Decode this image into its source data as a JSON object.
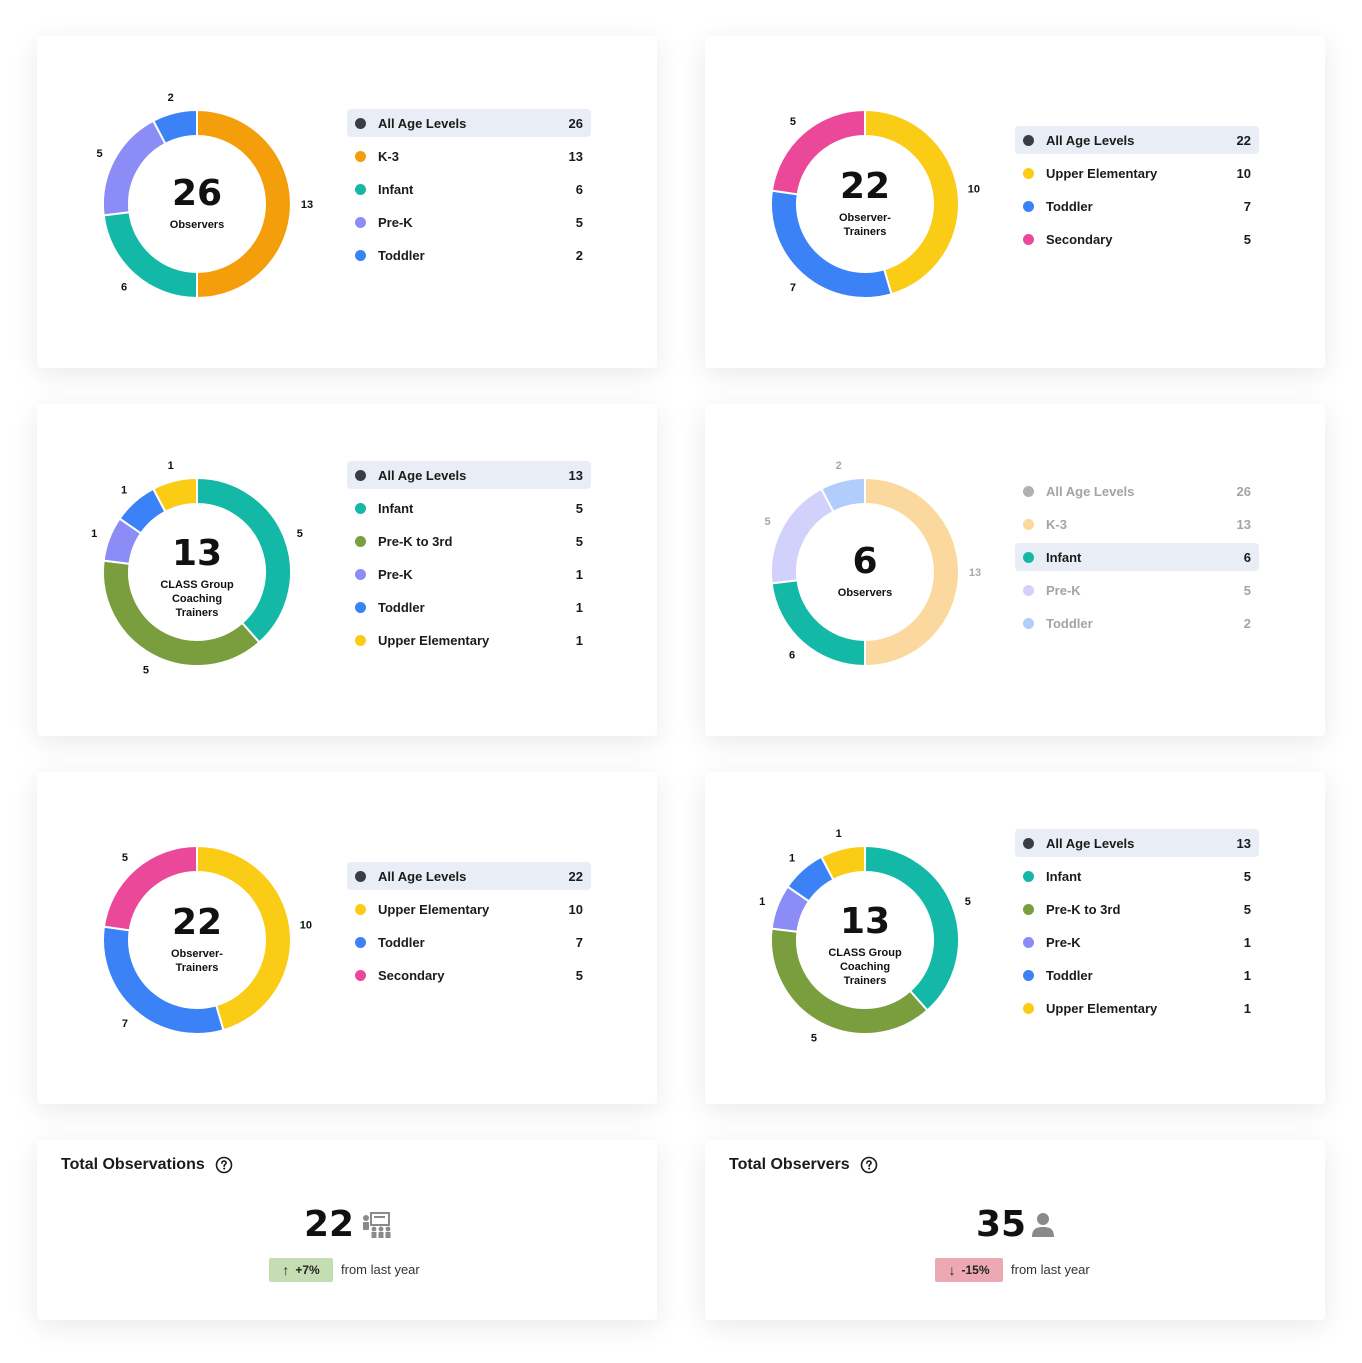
{
  "colors": {
    "all": "#3a3d44",
    "k3": "#f59e0b",
    "infant": "#14b8a6",
    "prek": "#8b8cf6",
    "toddler": "#3b82f6",
    "upper": "#facc15",
    "secondary": "#ec4899",
    "prek3rd": "#7a9e3e",
    "up_badge": "#c4ddb2",
    "down_badge": "#eda9b3"
  },
  "chart_data": [
    {
      "type": "pie",
      "center_value": "26",
      "center_label": [
        "Observers"
      ],
      "categories": [
        "K-3",
        "Infant",
        "Pre-K",
        "Toddler"
      ],
      "values": [
        13,
        6,
        5,
        2
      ],
      "colors": [
        "#f59e0b",
        "#14b8a6",
        "#8b8cf6",
        "#3b82f6"
      ],
      "highlight": null,
      "legend": [
        {
          "label": "All Age Levels",
          "value": "26",
          "color": "#3a3d44"
        },
        {
          "label": "K-3",
          "value": "13",
          "color": "#f59e0b"
        },
        {
          "label": "Infant",
          "value": "6",
          "color": "#14b8a6"
        },
        {
          "label": "Pre-K",
          "value": "5",
          "color": "#8b8cf6"
        },
        {
          "label": "Toddler",
          "value": "2",
          "color": "#3b82f6"
        }
      ],
      "selected_legend": 0
    },
    {
      "type": "pie",
      "center_value": "22",
      "center_label": [
        "Observer-",
        "Trainers"
      ],
      "categories": [
        "Upper Elementary",
        "Toddler",
        "Secondary"
      ],
      "values": [
        10,
        7,
        5
      ],
      "colors": [
        "#facc15",
        "#3b82f6",
        "#ec4899"
      ],
      "highlight": null,
      "legend": [
        {
          "label": "All Age Levels",
          "value": "22",
          "color": "#3a3d44"
        },
        {
          "label": "Upper Elementary",
          "value": "10",
          "color": "#facc15"
        },
        {
          "label": "Toddler",
          "value": "7",
          "color": "#3b82f6"
        },
        {
          "label": "Secondary",
          "value": "5",
          "color": "#ec4899"
        }
      ],
      "selected_legend": 0
    },
    {
      "type": "pie",
      "center_value": "13",
      "center_label": [
        "CLASS Group",
        "Coaching",
        "Trainers"
      ],
      "categories": [
        "Infant",
        "Pre-K to 3rd",
        "Pre-K",
        "Toddler",
        "Upper Elementary"
      ],
      "values": [
        5,
        5,
        1,
        1,
        1
      ],
      "colors": [
        "#14b8a6",
        "#7a9e3e",
        "#8b8cf6",
        "#3b82f6",
        "#facc15"
      ],
      "highlight": null,
      "legend": [
        {
          "label": "All Age Levels",
          "value": "13",
          "color": "#3a3d44"
        },
        {
          "label": "Infant",
          "value": "5",
          "color": "#14b8a6"
        },
        {
          "label": "Pre-K to 3rd",
          "value": "5",
          "color": "#7a9e3e"
        },
        {
          "label": "Pre-K",
          "value": "1",
          "color": "#8b8cf6"
        },
        {
          "label": "Toddler",
          "value": "1",
          "color": "#3b82f6"
        },
        {
          "label": "Upper Elementary",
          "value": "1",
          "color": "#facc15"
        }
      ],
      "selected_legend": 0
    },
    {
      "type": "pie",
      "center_value": "6",
      "center_label": [
        "Observers"
      ],
      "categories": [
        "K-3",
        "Infant",
        "Pre-K",
        "Toddler"
      ],
      "values": [
        13,
        6,
        5,
        2
      ],
      "colors": [
        "#f59e0b",
        "#14b8a6",
        "#8b8cf6",
        "#3b82f6"
      ],
      "highlight": 1,
      "legend": [
        {
          "label": "All Age Levels",
          "value": "26",
          "color": "#3a3d44"
        },
        {
          "label": "K-3",
          "value": "13",
          "color": "#f59e0b"
        },
        {
          "label": "Infant",
          "value": "6",
          "color": "#14b8a6"
        },
        {
          "label": "Pre-K",
          "value": "5",
          "color": "#8b8cf6"
        },
        {
          "label": "Toddler",
          "value": "2",
          "color": "#3b82f6"
        }
      ],
      "selected_legend": 2
    },
    {
      "type": "pie",
      "center_value": "22",
      "center_label": [
        "Observer-",
        "Trainers"
      ],
      "categories": [
        "Upper Elementary",
        "Toddler",
        "Secondary"
      ],
      "values": [
        10,
        7,
        5
      ],
      "colors": [
        "#facc15",
        "#3b82f6",
        "#ec4899"
      ],
      "highlight": null,
      "legend": [
        {
          "label": "All Age Levels",
          "value": "22",
          "color": "#3a3d44"
        },
        {
          "label": "Upper Elementary",
          "value": "10",
          "color": "#facc15"
        },
        {
          "label": "Toddler",
          "value": "7",
          "color": "#3b82f6"
        },
        {
          "label": "Secondary",
          "value": "5",
          "color": "#ec4899"
        }
      ],
      "selected_legend": 0
    },
    {
      "type": "pie",
      "center_value": "13",
      "center_label": [
        "CLASS Group",
        "Coaching",
        "Trainers"
      ],
      "categories": [
        "Infant",
        "Pre-K to 3rd",
        "Pre-K",
        "Toddler",
        "Upper Elementary"
      ],
      "values": [
        5,
        5,
        1,
        1,
        1
      ],
      "colors": [
        "#14b8a6",
        "#7a9e3e",
        "#8b8cf6",
        "#3b82f6",
        "#facc15"
      ],
      "highlight": null,
      "legend": [
        {
          "label": "All Age Levels",
          "value": "13",
          "color": "#3a3d44"
        },
        {
          "label": "Infant",
          "value": "5",
          "color": "#14b8a6"
        },
        {
          "label": "Pre-K to 3rd",
          "value": "5",
          "color": "#7a9e3e"
        },
        {
          "label": "Pre-K",
          "value": "1",
          "color": "#8b8cf6"
        },
        {
          "label": "Toddler",
          "value": "1",
          "color": "#3b82f6"
        },
        {
          "label": "Upper Elementary",
          "value": "1",
          "color": "#facc15"
        }
      ],
      "selected_legend": 0
    }
  ],
  "kpis": {
    "observations": {
      "title": "Total Observations",
      "value": "22",
      "icon": "classroom-icon",
      "change": "+7%",
      "direction": "up",
      "sub": "from last year"
    },
    "observers": {
      "title": "Total Observers",
      "value": "35",
      "icon": "person-icon",
      "change": "-15%",
      "direction": "down",
      "sub": "from last year"
    }
  }
}
